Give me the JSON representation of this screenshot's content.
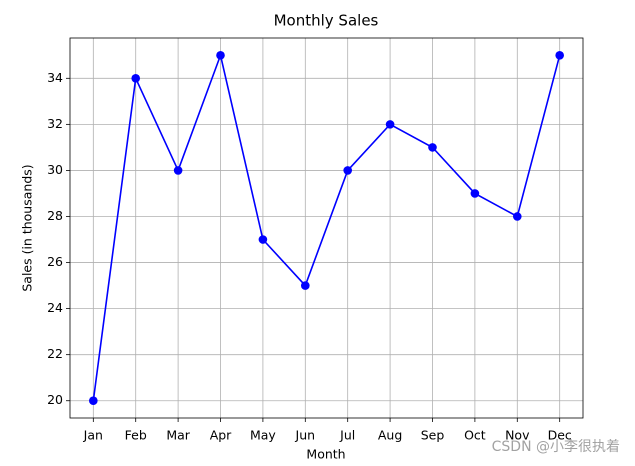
{
  "chart_data": {
    "type": "line",
    "title": "Monthly Sales",
    "x_label": "Month",
    "y_label": "Sales (in thousands)",
    "categories": [
      "Jan",
      "Feb",
      "Mar",
      "Apr",
      "May",
      "Jun",
      "Jul",
      "Aug",
      "Sep",
      "Oct",
      "Nov",
      "Dec"
    ],
    "values": [
      20,
      34,
      30,
      35,
      27,
      25,
      30,
      32,
      31,
      29,
      28,
      35
    ],
    "color": "#0000ff",
    "markers": true,
    "ylim": [
      19.25,
      35.75
    ],
    "yticks": [
      20,
      22,
      24,
      26,
      28,
      30,
      32,
      34
    ],
    "grid": true
  },
  "watermark": "CSDN @小李很执着"
}
